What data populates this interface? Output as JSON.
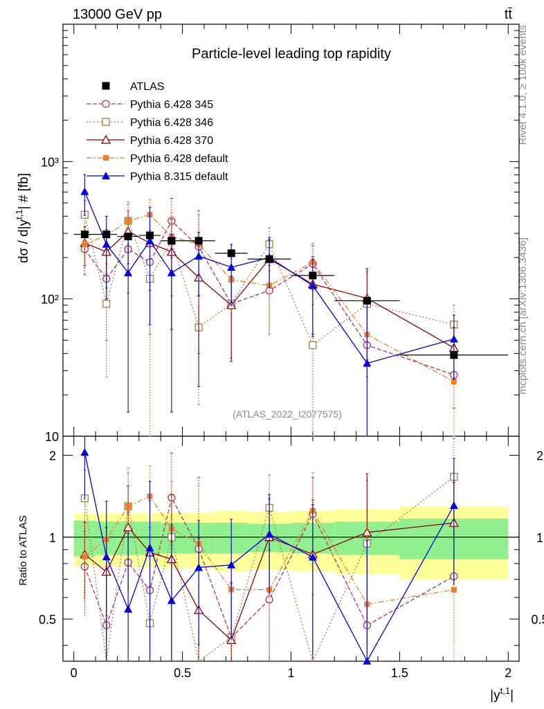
{
  "header": {
    "energy": "13000 GeV pp",
    "process": "tt̄"
  },
  "side_labels": {
    "rivet": "Rivet 4.1.0, ≥ 100k events",
    "mcplots": "mcplots.cern.ch [arXiv:1306.3436]"
  },
  "colors": {
    "atlas": "#000000",
    "p345": "#a83264",
    "p346": "#a08040",
    "p370": "#8b0000",
    "p6def": "#f07f28",
    "p8def": "#0000e0",
    "band_green": "#90f090",
    "band_yellow": "#ffff99"
  },
  "chart_data": {
    "type": "scatter",
    "title": "Particle-level leading top rapidity",
    "watermark": "(ATLAS_2022_I2077575)",
    "xlabel": "|y^{t,1}|",
    "ylabel": "dσ / d|y^{t,1}| # [fb]",
    "ylabel_ratio": "Ratio to ATLAS",
    "xlim": [
      -0.05,
      2.05
    ],
    "ylim_main": [
      10,
      10000
    ],
    "ylim_ratio": [
      0.35,
      2.35
    ],
    "x_ticks": [
      "0",
      "0.5",
      "1",
      "1.5",
      "2"
    ],
    "y_ticks_main": [
      "10",
      "10²",
      "10³"
    ],
    "y_ticks_ratio": [
      "0.5",
      "1",
      "2"
    ],
    "bins": [
      [
        0,
        0.1
      ],
      [
        0.1,
        0.2
      ],
      [
        0.2,
        0.3
      ],
      [
        0.3,
        0.4
      ],
      [
        0.4,
        0.5
      ],
      [
        0.5,
        0.65
      ],
      [
        0.65,
        0.8
      ],
      [
        0.8,
        1.0
      ],
      [
        1.0,
        1.2
      ],
      [
        1.2,
        1.5
      ],
      [
        1.5,
        2.0
      ]
    ],
    "x": [
      0.05,
      0.15,
      0.25,
      0.35,
      0.45,
      0.575,
      0.725,
      0.9,
      1.1,
      1.35,
      1.75
    ],
    "data_series": {
      "name": "ATLAS",
      "values": [
        295,
        295,
        285,
        290,
        265,
        265,
        215,
        195,
        148,
        97,
        39
      ],
      "band_inner": [
        0.15,
        0.14,
        0.14,
        0.14,
        0.13,
        0.13,
        0.13,
        0.12,
        0.13,
        0.14,
        0.17
      ],
      "band_outer": [
        0.22,
        0.22,
        0.22,
        0.23,
        0.23,
        0.23,
        0.25,
        0.24,
        0.25,
        0.27,
        0.3
      ]
    },
    "series": [
      {
        "name": "Pythia 6.428 345",
        "color_key": "p345",
        "marker": "circle-open",
        "dash": "6,3",
        "values": [
          230,
          140,
          230,
          185,
          370,
          240,
          92,
          115,
          180,
          46,
          28
        ],
        "err_up": [
          80,
          90,
          120,
          130,
          170,
          200,
          55,
          60,
          65,
          45,
          12
        ],
        "err_down": [
          80,
          90,
          120,
          130,
          170,
          200,
          55,
          60,
          65,
          45,
          12
        ]
      },
      {
        "name": "Pythia 6.428 346",
        "color_key": "p346",
        "marker": "square-open",
        "dash": "2,3",
        "values": [
          410,
          92,
          370,
          140,
          265,
          62,
          92,
          250,
          46,
          92,
          65
        ],
        "err_up": [
          110,
          60,
          120,
          130,
          160,
          45,
          55,
          80,
          45,
          65,
          25
        ],
        "err_down": [
          110,
          65,
          120,
          130,
          160,
          45,
          55,
          90,
          40,
          65,
          25
        ]
      },
      {
        "name": "Pythia 6.428 370",
        "color_key": "p370",
        "marker": "triangle-open",
        "dash": "",
        "values": [
          255,
          220,
          310,
          255,
          220,
          143,
          90,
          195,
          128,
          101,
          44
        ],
        "err_up": [
          80,
          100,
          130,
          140,
          160,
          120,
          55,
          75,
          75,
          65,
          18
        ],
        "err_down": [
          80,
          100,
          130,
          140,
          160,
          120,
          55,
          75,
          75,
          65,
          18
        ]
      },
      {
        "name": "Pythia 6.428 default",
        "color_key": "p6def",
        "marker": "square-filled",
        "dash": "8,3,2,3",
        "values": [
          250,
          290,
          370,
          410,
          285,
          250,
          138,
          125,
          185,
          55,
          25
        ],
        "err_up": [
          80,
          110,
          140,
          120,
          140,
          160,
          60,
          70,
          70,
          50,
          15
        ],
        "err_down": [
          80,
          110,
          140,
          120,
          140,
          160,
          60,
          70,
          70,
          50,
          15
        ]
      },
      {
        "name": "Pythia 8.315 default",
        "color_key": "p8def",
        "marker": "triangle-filled",
        "dash": "",
        "values": [
          605,
          250,
          155,
          265,
          155,
          205,
          170,
          200,
          125,
          34,
          51
        ],
        "err_up": [
          200,
          150,
          140,
          200,
          140,
          100,
          80,
          80,
          70,
          60,
          25
        ],
        "err_down": [
          200,
          150,
          140,
          200,
          140,
          100,
          80,
          80,
          70,
          60,
          25
        ]
      }
    ]
  }
}
